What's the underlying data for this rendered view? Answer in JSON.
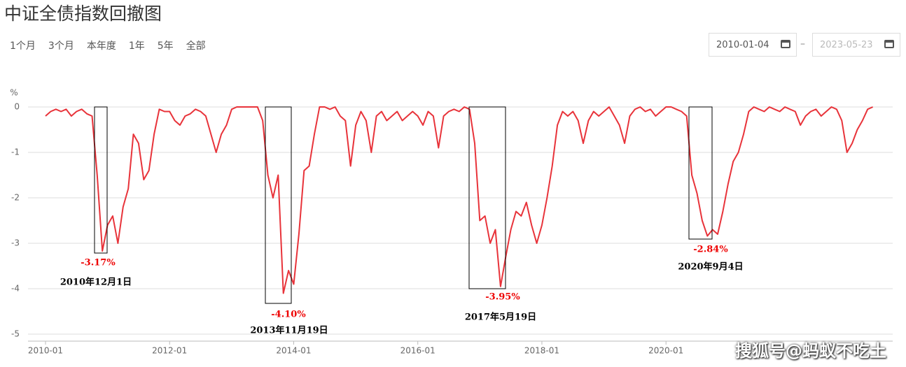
{
  "header": {
    "title": "中证全债指数回撤图"
  },
  "controls": {
    "ranges": [
      "1个月",
      "3个月",
      "本年度",
      "1年",
      "5年",
      "全部"
    ],
    "start_date": "2010-01-04",
    "separator": "–",
    "end_date": "2023-05-23"
  },
  "watermark": "搜狐号@蚂蚁不吃土",
  "chart_data": {
    "type": "line",
    "y_label": "%",
    "color": "#e8333a",
    "x": [
      "2010-01",
      "2010-02",
      "2010-03",
      "2010-04",
      "2010-05",
      "2010-06",
      "2010-07",
      "2010-08",
      "2010-09",
      "2010-10",
      "2010-11",
      "2010-12",
      "2011-01",
      "2011-02",
      "2011-03",
      "2011-04",
      "2011-05",
      "2011-06",
      "2011-07",
      "2011-08",
      "2011-09",
      "2011-10",
      "2011-11",
      "2011-12",
      "2012-01",
      "2012-02",
      "2012-03",
      "2012-04",
      "2012-05",
      "2012-06",
      "2012-07",
      "2012-08",
      "2012-09",
      "2012-10",
      "2012-11",
      "2012-12",
      "2013-01",
      "2013-02",
      "2013-03",
      "2013-04",
      "2013-05",
      "2013-06",
      "2013-07",
      "2013-08",
      "2013-09",
      "2013-10",
      "2013-11",
      "2013-12",
      "2014-01",
      "2014-02",
      "2014-03",
      "2014-04",
      "2014-05",
      "2014-06",
      "2014-07",
      "2014-08",
      "2014-09",
      "2014-10",
      "2014-11",
      "2014-12",
      "2015-01",
      "2015-02",
      "2015-03",
      "2015-04",
      "2015-05",
      "2015-06",
      "2015-07",
      "2015-08",
      "2015-09",
      "2015-10",
      "2015-11",
      "2015-12",
      "2016-01",
      "2016-02",
      "2016-03",
      "2016-04",
      "2016-05",
      "2016-06",
      "2016-07",
      "2016-08",
      "2016-09",
      "2016-10",
      "2016-11",
      "2016-12",
      "2017-01",
      "2017-02",
      "2017-03",
      "2017-04",
      "2017-05",
      "2017-06",
      "2017-07",
      "2017-08",
      "2017-09",
      "2017-10",
      "2017-11",
      "2017-12",
      "2018-01",
      "2018-02",
      "2018-03",
      "2018-04",
      "2018-05",
      "2018-06",
      "2018-07",
      "2018-08",
      "2018-09",
      "2018-10",
      "2018-11",
      "2018-12",
      "2019-01",
      "2019-02",
      "2019-03",
      "2019-04",
      "2019-05",
      "2019-06",
      "2019-07",
      "2019-08",
      "2019-09",
      "2019-10",
      "2019-11",
      "2019-12",
      "2020-01",
      "2020-02",
      "2020-03",
      "2020-04",
      "2020-05",
      "2020-06",
      "2020-07",
      "2020-08",
      "2020-09",
      "2020-10",
      "2020-11",
      "2020-12",
      "2021-01",
      "2021-02",
      "2021-03",
      "2021-04",
      "2021-05",
      "2021-06",
      "2021-07",
      "2021-08",
      "2021-09",
      "2021-10",
      "2021-11",
      "2021-12",
      "2022-01",
      "2022-02",
      "2022-03",
      "2022-04",
      "2022-05",
      "2022-06",
      "2022-07",
      "2022-08",
      "2022-09",
      "2022-10",
      "2022-11",
      "2022-12",
      "2023-01",
      "2023-02",
      "2023-03",
      "2023-04",
      "2023-05"
    ],
    "values": [
      -0.2,
      -0.1,
      -0.05,
      -0.1,
      -0.05,
      -0.2,
      -0.1,
      -0.05,
      -0.15,
      -0.2,
      -1.5,
      -3.17,
      -2.6,
      -2.4,
      -3.0,
      -2.2,
      -1.8,
      -0.6,
      -0.8,
      -1.6,
      -1.4,
      -0.6,
      -0.05,
      -0.1,
      -0.1,
      -0.3,
      -0.4,
      -0.2,
      -0.15,
      -0.05,
      -0.1,
      -0.2,
      -0.6,
      -1.0,
      -0.6,
      -0.4,
      -0.05,
      0,
      0,
      0,
      0,
      0,
      -0.3,
      -1.5,
      -2.0,
      -1.5,
      -4.1,
      -3.6,
      -3.9,
      -2.8,
      -1.4,
      -1.3,
      -0.6,
      0,
      0,
      -0.05,
      0,
      -0.2,
      -0.3,
      -1.3,
      -0.4,
      -0.1,
      -0.3,
      -1.0,
      -0.2,
      -0.1,
      -0.3,
      -0.2,
      -0.1,
      -0.3,
      -0.2,
      -0.1,
      -0.2,
      -0.4,
      -0.1,
      -0.2,
      -0.9,
      -0.2,
      -0.1,
      -0.05,
      -0.1,
      0,
      -0.05,
      -0.8,
      -2.5,
      -2.4,
      -3.0,
      -2.7,
      -3.95,
      -3.3,
      -2.7,
      -2.3,
      -2.4,
      -2.1,
      -2.6,
      -3.0,
      -2.6,
      -2.0,
      -1.3,
      -0.4,
      -0.1,
      -0.2,
      -0.1,
      -0.3,
      -0.8,
      -0.3,
      -0.1,
      -0.2,
      -0.1,
      0,
      -0.2,
      -0.4,
      -0.8,
      -0.2,
      -0.05,
      0,
      -0.1,
      -0.05,
      -0.2,
      -0.1,
      0,
      0,
      -0.05,
      -0.1,
      -0.2,
      -1.5,
      -1.9,
      -2.5,
      -2.84,
      -2.7,
      -2.8,
      -2.3,
      -1.7,
      -1.2,
      -1.0,
      -0.6,
      -0.1,
      0,
      -0.05,
      -0.1,
      0,
      -0.05,
      -0.1,
      0,
      -0.05,
      -0.1,
      -0.4,
      -0.2,
      -0.1,
      -0.05,
      -0.2,
      -0.1,
      0,
      -0.05,
      -0.3,
      -1.0,
      -0.8,
      -0.5,
      -0.3,
      -0.05,
      0
    ],
    "ylim": [
      -5,
      0
    ],
    "yticks": [
      0,
      -1,
      -2,
      -3,
      -4,
      -5
    ],
    "xticks": [
      "2010-01",
      "2012-01",
      "2014-01",
      "2016-01",
      "2018-01",
      "2020-01"
    ],
    "grid": true,
    "annotations": [
      {
        "value_label": "-3.17%",
        "date": "2010年12月1日"
      },
      {
        "value_label": "-4.10%",
        "date": "2013年11月19日"
      },
      {
        "value_label": "-3.95%",
        "date": "2017年5月19日"
      },
      {
        "value_label": "-2.84%",
        "date": "2020年9月4日"
      }
    ]
  }
}
